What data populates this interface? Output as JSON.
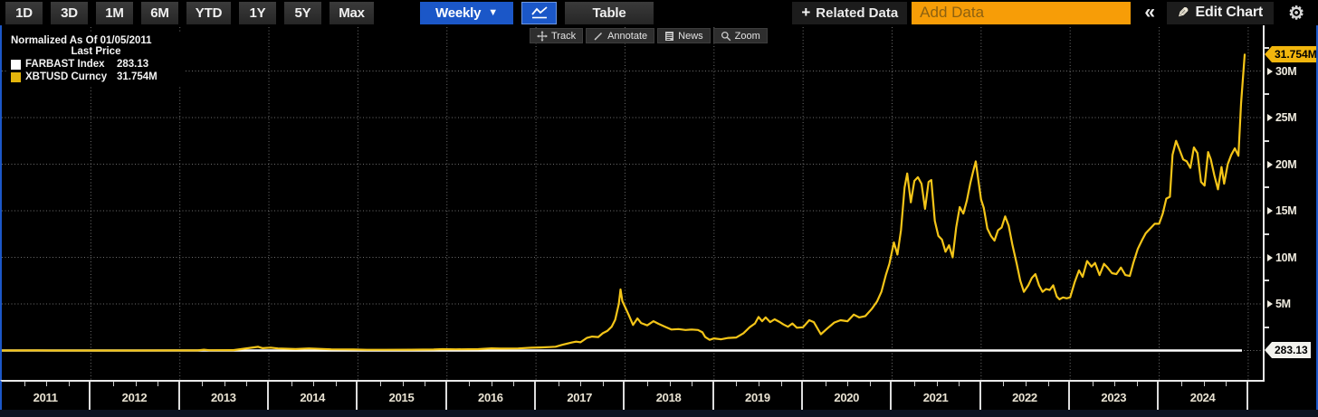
{
  "toolbar": {
    "periods": [
      "1D",
      "3D",
      "1M",
      "6M",
      "YTD",
      "1Y",
      "5Y",
      "Max"
    ],
    "interval_label": "Weekly",
    "interval_arrow": "▼",
    "table_label": "Table",
    "related_plus": "+",
    "related_data_label": "Related Data",
    "add_data_placeholder": "Add Data",
    "collapse_label": "«",
    "edit_chart_label": "Edit Chart",
    "pencil_glyph": "✎",
    "gear_glyph": "⚙"
  },
  "chart_tools": {
    "track": "Track",
    "annotate": "Annotate",
    "news": "News",
    "zoom": "Zoom"
  },
  "legend": {
    "title": "Normalized As Of 01/05/2011",
    "subtitle": "Last Price",
    "items": [
      {
        "label": "FARBAST Index",
        "value": "283.13",
        "swatch": "#ffffff"
      },
      {
        "label": "XBTUSD Curncy",
        "value": "31.754M",
        "swatch": "#e3b50c"
      }
    ]
  },
  "axis_tags": {
    "xbtusd": "31.754M",
    "farbast": "283.13"
  },
  "colors": {
    "accent_blue": "#1b57c8",
    "orange_field": "#f79d07",
    "line_yellow": "#f4c518",
    "line_white": "#ffffff",
    "grid_gray": "#8a8a8a",
    "tag_yellow": "#f2b60d",
    "tag_white": "#f3f3ee"
  },
  "chart_data": {
    "type": "line",
    "title": "Normalized As Of 01/05/2011 - Last Price",
    "x_axis": {
      "tick_years": [
        "2011",
        "2012",
        "2013",
        "2014",
        "2015",
        "2016",
        "2017",
        "2018",
        "2019",
        "2020",
        "2021",
        "2022",
        "2023",
        "2024"
      ],
      "range": [
        2011.0,
        2025.2
      ]
    },
    "y_axis": {
      "unit": "M",
      "tick_values": [
        5,
        10,
        15,
        20,
        25,
        30
      ],
      "tick_labels": [
        "5M",
        "10M",
        "15M",
        "20M",
        "25M",
        "30M"
      ],
      "ylim": [
        0,
        33
      ],
      "grid": "dotted"
    },
    "legend_position": "top-left",
    "series": [
      {
        "name": "FARBAST Index",
        "color": "#ffffff",
        "last_value_label": "283.13",
        "points": [
          [
            2011.0,
            0.0001
          ],
          [
            2024.93,
            0.000283
          ]
        ]
      },
      {
        "name": "XBTUSD Curncy",
        "color": "#f4c518",
        "last_value_label": "31.754M",
        "points": [
          [
            2011.0,
            0.0001
          ],
          [
            2011.4,
            0.01
          ],
          [
            2011.55,
            0.003
          ],
          [
            2012.0,
            0.002
          ],
          [
            2012.5,
            0.002
          ],
          [
            2012.95,
            0.005
          ],
          [
            2013.2,
            0.01
          ],
          [
            2013.27,
            0.09
          ],
          [
            2013.33,
            0.03
          ],
          [
            2013.6,
            0.04
          ],
          [
            2013.88,
            0.4
          ],
          [
            2013.93,
            0.25
          ],
          [
            2014.02,
            0.31
          ],
          [
            2014.1,
            0.22
          ],
          [
            2014.3,
            0.16
          ],
          [
            2014.45,
            0.22
          ],
          [
            2014.7,
            0.13
          ],
          [
            2014.95,
            0.11
          ],
          [
            2015.1,
            0.08
          ],
          [
            2015.3,
            0.08
          ],
          [
            2015.6,
            0.09
          ],
          [
            2015.85,
            0.11
          ],
          [
            2015.95,
            0.15
          ],
          [
            2016.1,
            0.13
          ],
          [
            2016.35,
            0.15
          ],
          [
            2016.5,
            0.23
          ],
          [
            2016.6,
            0.2
          ],
          [
            2016.8,
            0.22
          ],
          [
            2016.95,
            0.3
          ],
          [
            2017.05,
            0.33
          ],
          [
            2017.15,
            0.37
          ],
          [
            2017.22,
            0.41
          ],
          [
            2017.3,
            0.62
          ],
          [
            2017.4,
            0.85
          ],
          [
            2017.45,
            0.95
          ],
          [
            2017.5,
            0.88
          ],
          [
            2017.57,
            1.35
          ],
          [
            2017.63,
            1.5
          ],
          [
            2017.7,
            1.45
          ],
          [
            2017.75,
            1.85
          ],
          [
            2017.8,
            2.1
          ],
          [
            2017.85,
            2.55
          ],
          [
            2017.89,
            3.3
          ],
          [
            2017.93,
            5.0
          ],
          [
            2017.95,
            6.55
          ],
          [
            2017.97,
            5.3
          ],
          [
            2018.0,
            4.7
          ],
          [
            2018.04,
            3.85
          ],
          [
            2018.09,
            2.75
          ],
          [
            2018.14,
            3.45
          ],
          [
            2018.18,
            2.95
          ],
          [
            2018.25,
            2.7
          ],
          [
            2018.32,
            3.15
          ],
          [
            2018.38,
            2.85
          ],
          [
            2018.45,
            2.55
          ],
          [
            2018.52,
            2.25
          ],
          [
            2018.6,
            2.3
          ],
          [
            2018.68,
            2.2
          ],
          [
            2018.75,
            2.25
          ],
          [
            2018.82,
            2.2
          ],
          [
            2018.87,
            1.95
          ],
          [
            2018.9,
            1.45
          ],
          [
            2018.95,
            1.15
          ],
          [
            2019.0,
            1.3
          ],
          [
            2019.08,
            1.2
          ],
          [
            2019.16,
            1.35
          ],
          [
            2019.25,
            1.4
          ],
          [
            2019.33,
            1.85
          ],
          [
            2019.4,
            2.5
          ],
          [
            2019.46,
            2.9
          ],
          [
            2019.5,
            3.6
          ],
          [
            2019.54,
            3.15
          ],
          [
            2019.58,
            3.55
          ],
          [
            2019.63,
            3.05
          ],
          [
            2019.68,
            3.35
          ],
          [
            2019.73,
            3.1
          ],
          [
            2019.78,
            2.8
          ],
          [
            2019.83,
            2.55
          ],
          [
            2019.88,
            2.9
          ],
          [
            2019.93,
            2.45
          ],
          [
            2020.0,
            2.5
          ],
          [
            2020.07,
            3.25
          ],
          [
            2020.12,
            3.05
          ],
          [
            2020.2,
            1.75
          ],
          [
            2020.27,
            2.35
          ],
          [
            2020.35,
            3.0
          ],
          [
            2020.42,
            3.25
          ],
          [
            2020.5,
            3.15
          ],
          [
            2020.57,
            3.85
          ],
          [
            2020.63,
            3.55
          ],
          [
            2020.7,
            3.7
          ],
          [
            2020.77,
            4.45
          ],
          [
            2020.83,
            5.25
          ],
          [
            2020.88,
            6.3
          ],
          [
            2020.93,
            8.1
          ],
          [
            2020.97,
            9.3
          ],
          [
            2021.02,
            11.6
          ],
          [
            2021.06,
            10.3
          ],
          [
            2021.1,
            12.9
          ],
          [
            2021.14,
            17.5
          ],
          [
            2021.17,
            19.0
          ],
          [
            2021.21,
            15.9
          ],
          [
            2021.25,
            18.2
          ],
          [
            2021.29,
            18.6
          ],
          [
            2021.33,
            17.9
          ],
          [
            2021.37,
            15.2
          ],
          [
            2021.41,
            18.1
          ],
          [
            2021.44,
            18.3
          ],
          [
            2021.48,
            13.9
          ],
          [
            2021.52,
            12.3
          ],
          [
            2021.56,
            11.9
          ],
          [
            2021.6,
            10.6
          ],
          [
            2021.64,
            11.3
          ],
          [
            2021.68,
            10.0
          ],
          [
            2021.72,
            13.2
          ],
          [
            2021.76,
            15.4
          ],
          [
            2021.8,
            14.7
          ],
          [
            2021.84,
            16.1
          ],
          [
            2021.88,
            18.0
          ],
          [
            2021.91,
            19.2
          ],
          [
            2021.94,
            20.3
          ],
          [
            2021.97,
            18.2
          ],
          [
            2022.0,
            16.2
          ],
          [
            2022.03,
            15.3
          ],
          [
            2022.07,
            13.1
          ],
          [
            2022.11,
            12.3
          ],
          [
            2022.15,
            11.8
          ],
          [
            2022.19,
            12.9
          ],
          [
            2022.23,
            13.2
          ],
          [
            2022.27,
            14.4
          ],
          [
            2022.31,
            13.4
          ],
          [
            2022.35,
            11.4
          ],
          [
            2022.4,
            9.3
          ],
          [
            2022.44,
            7.5
          ],
          [
            2022.48,
            6.3
          ],
          [
            2022.53,
            7.0
          ],
          [
            2022.57,
            7.8
          ],
          [
            2022.61,
            8.2
          ],
          [
            2022.65,
            7.0
          ],
          [
            2022.69,
            6.3
          ],
          [
            2022.73,
            6.6
          ],
          [
            2022.77,
            6.5
          ],
          [
            2022.81,
            7.0
          ],
          [
            2022.85,
            5.8
          ],
          [
            2022.88,
            5.5
          ],
          [
            2022.92,
            5.7
          ],
          [
            2022.96,
            5.6
          ],
          [
            2023.0,
            5.7
          ],
          [
            2023.05,
            7.3
          ],
          [
            2023.1,
            8.6
          ],
          [
            2023.14,
            7.9
          ],
          [
            2023.19,
            9.6
          ],
          [
            2023.24,
            9.0
          ],
          [
            2023.28,
            9.4
          ],
          [
            2023.33,
            8.1
          ],
          [
            2023.38,
            9.3
          ],
          [
            2023.42,
            8.9
          ],
          [
            2023.47,
            8.3
          ],
          [
            2023.52,
            8.2
          ],
          [
            2023.57,
            8.9
          ],
          [
            2023.62,
            8.1
          ],
          [
            2023.67,
            8.0
          ],
          [
            2023.71,
            9.4
          ],
          [
            2023.76,
            10.9
          ],
          [
            2023.81,
            11.9
          ],
          [
            2023.85,
            12.6
          ],
          [
            2023.9,
            13.1
          ],
          [
            2023.95,
            13.6
          ],
          [
            2024.0,
            13.6
          ],
          [
            2024.04,
            14.7
          ],
          [
            2024.08,
            16.3
          ],
          [
            2024.12,
            16.5
          ],
          [
            2024.15,
            21.0
          ],
          [
            2024.19,
            22.5
          ],
          [
            2024.23,
            21.5
          ],
          [
            2024.27,
            20.5
          ],
          [
            2024.31,
            20.3
          ],
          [
            2024.35,
            19.6
          ],
          [
            2024.39,
            21.8
          ],
          [
            2024.43,
            21.2
          ],
          [
            2024.47,
            18.1
          ],
          [
            2024.51,
            17.7
          ],
          [
            2024.55,
            21.3
          ],
          [
            2024.58,
            20.5
          ],
          [
            2024.62,
            18.8
          ],
          [
            2024.66,
            17.3
          ],
          [
            2024.7,
            19.7
          ],
          [
            2024.73,
            17.9
          ],
          [
            2024.77,
            20.0
          ],
          [
            2024.81,
            21.0
          ],
          [
            2024.85,
            21.7
          ],
          [
            2024.89,
            20.9
          ],
          [
            2024.92,
            26.5
          ],
          [
            2024.96,
            31.754
          ]
        ]
      }
    ]
  }
}
